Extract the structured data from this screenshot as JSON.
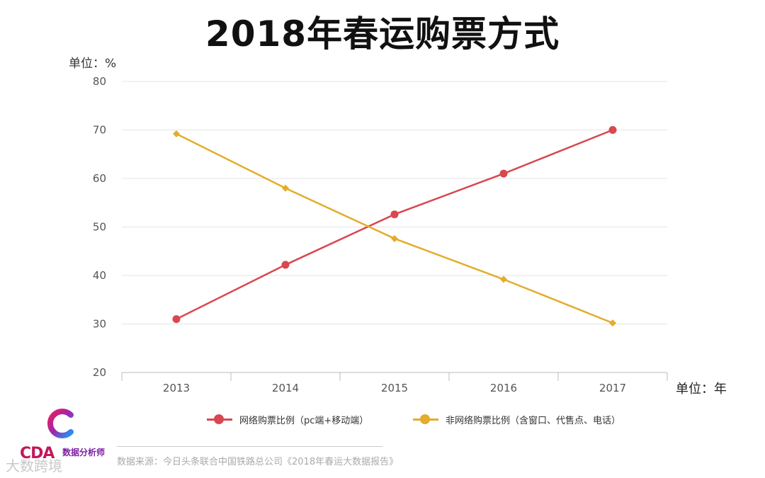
{
  "chart_data": {
    "type": "line",
    "title": "2018年春运购票方式",
    "ylabel": "单位：%",
    "xlabel": "单位：年",
    "ylim": [
      20,
      80
    ],
    "yticks": [
      20,
      30,
      40,
      50,
      60,
      70,
      80
    ],
    "categories": [
      "2013",
      "2014",
      "2015",
      "2016",
      "2017"
    ],
    "series": [
      {
        "name": "网络购票比例（pc端+移动端）",
        "color": "#d9474f",
        "marker": "circle",
        "values": [
          31,
          42.2,
          52.6,
          61,
          70
        ]
      },
      {
        "name": "非网络购票比例（含窗口、代售点、电话）",
        "color": "#e3ac2a",
        "marker": "diamond",
        "values": [
          69.2,
          58,
          47.6,
          39.2,
          30.2
        ]
      }
    ],
    "grid": true,
    "legend": "bottom"
  },
  "footer": {
    "source": "数据来源：今日头条联合中国铁路总公司《2018年春运大数据报告》",
    "watermark": "大数跨境",
    "logo_text": "CDA",
    "logo_sub": "数据分析师"
  }
}
